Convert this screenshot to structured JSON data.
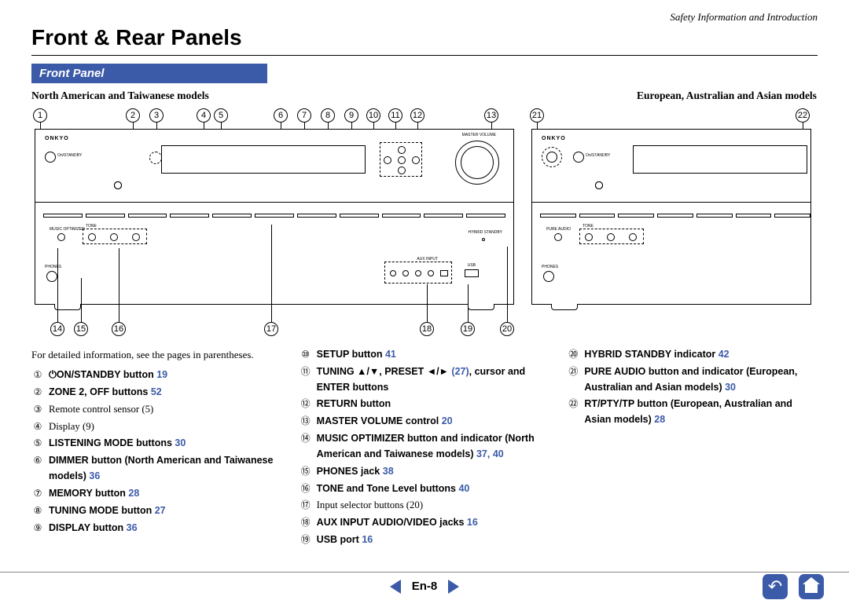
{
  "header": {
    "top_right": "Safety Information and Introduction",
    "title": "Front & Rear Panels"
  },
  "section": {
    "front_panel": "Front Panel"
  },
  "models": {
    "left": "North American and Taiwanese models",
    "right": "European, Australian and Asian models"
  },
  "diagram_logo": "ONKYO",
  "callouts_top_left": [
    "1",
    "2",
    "3",
    "4",
    "5",
    "6",
    "7",
    "8",
    "9",
    "10",
    "11",
    "12",
    "13"
  ],
  "callouts_bottom_left": [
    "14",
    "15",
    "16",
    "17",
    "18",
    "19",
    "20"
  ],
  "callouts_top_right": [
    "21",
    "22"
  ],
  "lead_text": "For detailed information, see the pages in parentheses.",
  "power_glyph": "⏻",
  "col1": [
    {
      "n": "①",
      "bold": "⏻ON/STANDBY button ",
      "pg": "19"
    },
    {
      "n": "②",
      "bold": "ZONE 2, OFF buttons ",
      "pg": "52"
    },
    {
      "n": "③",
      "plain": "Remote control sensor ",
      "pg": "(5)"
    },
    {
      "n": "④",
      "plain": "Display ",
      "pg": "(9)"
    },
    {
      "n": "⑤",
      "bold": "LISTENING MODE buttons ",
      "pg": "30"
    },
    {
      "n": "⑥",
      "bold": "DIMMER button (North American and Taiwanese models) ",
      "pg": "36"
    },
    {
      "n": "⑦",
      "bold": "MEMORY button ",
      "pg": "28"
    },
    {
      "n": "⑧",
      "bold": "TUNING MODE button ",
      "pg": "27"
    },
    {
      "n": "⑨",
      "bold": "DISPLAY button ",
      "pg": "36"
    }
  ],
  "col2": [
    {
      "n": "⑩",
      "bold": "SETUP button ",
      "pg": "41"
    },
    {
      "n": "⑪",
      "bold": "TUNING ▲/▼, PRESET ◄/► ",
      "pg": "(27)",
      "tail_bold": ", cursor and ENTER buttons"
    },
    {
      "n": "⑫",
      "bold": "RETURN button"
    },
    {
      "n": "⑬",
      "bold": "MASTER VOLUME control ",
      "pg": "20"
    },
    {
      "n": "⑭",
      "bold": "MUSIC OPTIMIZER button and indicator (North American and Taiwanese models) ",
      "pg": "37, 40"
    },
    {
      "n": "⑮",
      "bold": "PHONES jack ",
      "pg": "38"
    },
    {
      "n": "⑯",
      "bold": "TONE and Tone Level buttons ",
      "pg": "40"
    },
    {
      "n": "⑰",
      "plain": "Input selector buttons ",
      "pg": "(20)"
    },
    {
      "n": "⑱",
      "bold": "AUX INPUT AUDIO/VIDEO jacks ",
      "pg": "16"
    },
    {
      "n": "⑲",
      "bold": "USB port ",
      "pg": "16"
    }
  ],
  "col3": [
    {
      "n": "⑳",
      "bold": "HYBRID STANDBY indicator ",
      "pg": "42"
    },
    {
      "n": "㉑",
      "bold": "PURE AUDIO button and indicator (European, Australian and Asian models) ",
      "pg": "30"
    },
    {
      "n": "㉒",
      "bold": "RT/PTY/TP button (European, Australian and Asian models) ",
      "pg": "28"
    }
  ],
  "footer": {
    "page": "En-8"
  },
  "colors": {
    "accent": "#3b5aa8"
  }
}
